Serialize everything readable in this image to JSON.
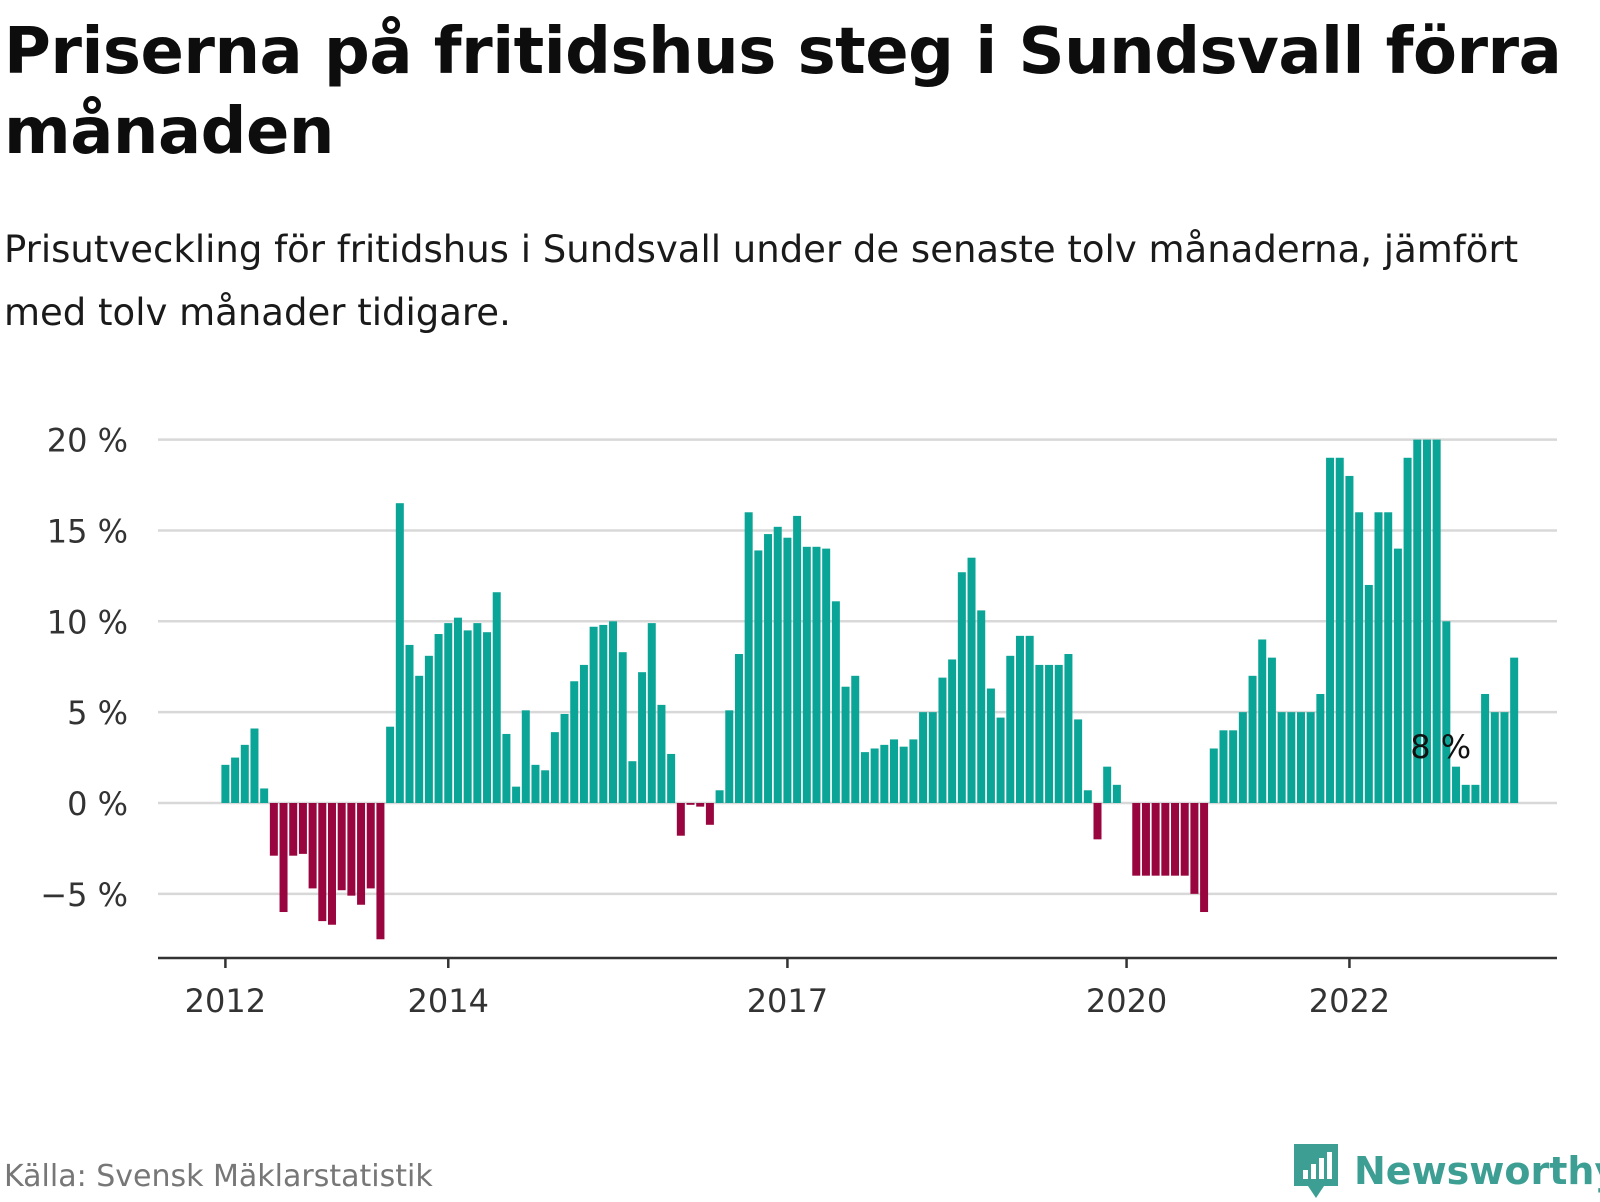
{
  "title": "Priserna på fritidshus steg i Sundsvall förra månaden",
  "subtitle": "Prisutveckling för fritidshus i Sundsvall under de senaste tolv månaderna, jämfört med tolv månader tidigare.",
  "source": "Källa: Svensk Mäklarstatistik",
  "brand": {
    "name": "Newsworthy",
    "logo_icon": "bar-chart-speech-bubble-icon"
  },
  "colors": {
    "positive": "#0ba597",
    "negative": "#99063f",
    "grid": "#d8d8d8",
    "axis": "#333333",
    "brand": "#3d9e94"
  },
  "chart_data": {
    "type": "bar",
    "unit": "%",
    "ylim": [
      -8.5,
      20
    ],
    "yticks": [
      {
        "value": 20,
        "label": "20 %"
      },
      {
        "value": 15,
        "label": "15 %"
      },
      {
        "value": 10,
        "label": "10 %"
      },
      {
        "value": 5,
        "label": "5 %"
      },
      {
        "value": 0,
        "label": "0 %"
      },
      {
        "value": -5,
        "label": "−5 %"
      }
    ],
    "xticks": [
      {
        "label": "2012",
        "index": 0
      },
      {
        "label": "2014",
        "index": 23
      },
      {
        "label": "2017",
        "index": 58
      },
      {
        "label": "2020",
        "index": 93
      },
      {
        "label": "2022",
        "index": 116
      }
    ],
    "grid": true,
    "legend": "none",
    "annotation": {
      "index": 128,
      "label": "8 %"
    },
    "values": [
      2.1,
      2.5,
      3.2,
      4.1,
      0.8,
      -2.9,
      -6.0,
      -2.9,
      -2.8,
      -4.7,
      -6.5,
      -6.7,
      -4.8,
      -5.1,
      -5.6,
      -4.7,
      -7.5,
      4.2,
      16.5,
      8.7,
      7.0,
      8.1,
      9.3,
      9.9,
      10.2,
      9.5,
      9.9,
      9.4,
      11.6,
      3.8,
      0.9,
      5.1,
      2.1,
      1.8,
      3.9,
      4.9,
      6.7,
      7.6,
      9.7,
      9.8,
      10.0,
      8.3,
      2.3,
      7.2,
      9.9,
      5.4,
      2.7,
      -1.8,
      -0.1,
      -0.2,
      -1.2,
      0.7,
      5.1,
      8.2,
      16.0,
      13.9,
      14.8,
      15.2,
      14.6,
      15.8,
      14.1,
      14.1,
      14.0,
      11.1,
      6.4,
      7.0,
      2.8,
      3.0,
      3.2,
      3.5,
      3.1,
      3.5,
      5.0,
      5.0,
      6.9,
      7.9,
      12.7,
      13.5,
      10.6,
      6.3,
      4.7,
      8.1,
      9.2,
      9.2,
      7.6,
      7.6,
      7.6,
      8.2,
      4.6,
      0.7,
      -2.0,
      2.0,
      1.0,
      0,
      -4.0,
      -4.0,
      -4.0,
      -4.0,
      -4.0,
      -4.0,
      -5.0,
      -6.0,
      3.0,
      4.0,
      4.0,
      5.0,
      7.0,
      9.0,
      8.0,
      5.0,
      5.0,
      5.0,
      5.0,
      6.0,
      19.0,
      19.0,
      18.0,
      16.0,
      12.0,
      16.0,
      16.0,
      14.0,
      19.0,
      20.0,
      20.0,
      20.0,
      10.0,
      2.0,
      1.0,
      1.0,
      6.0,
      5.0,
      5.0,
      8.0
    ]
  }
}
